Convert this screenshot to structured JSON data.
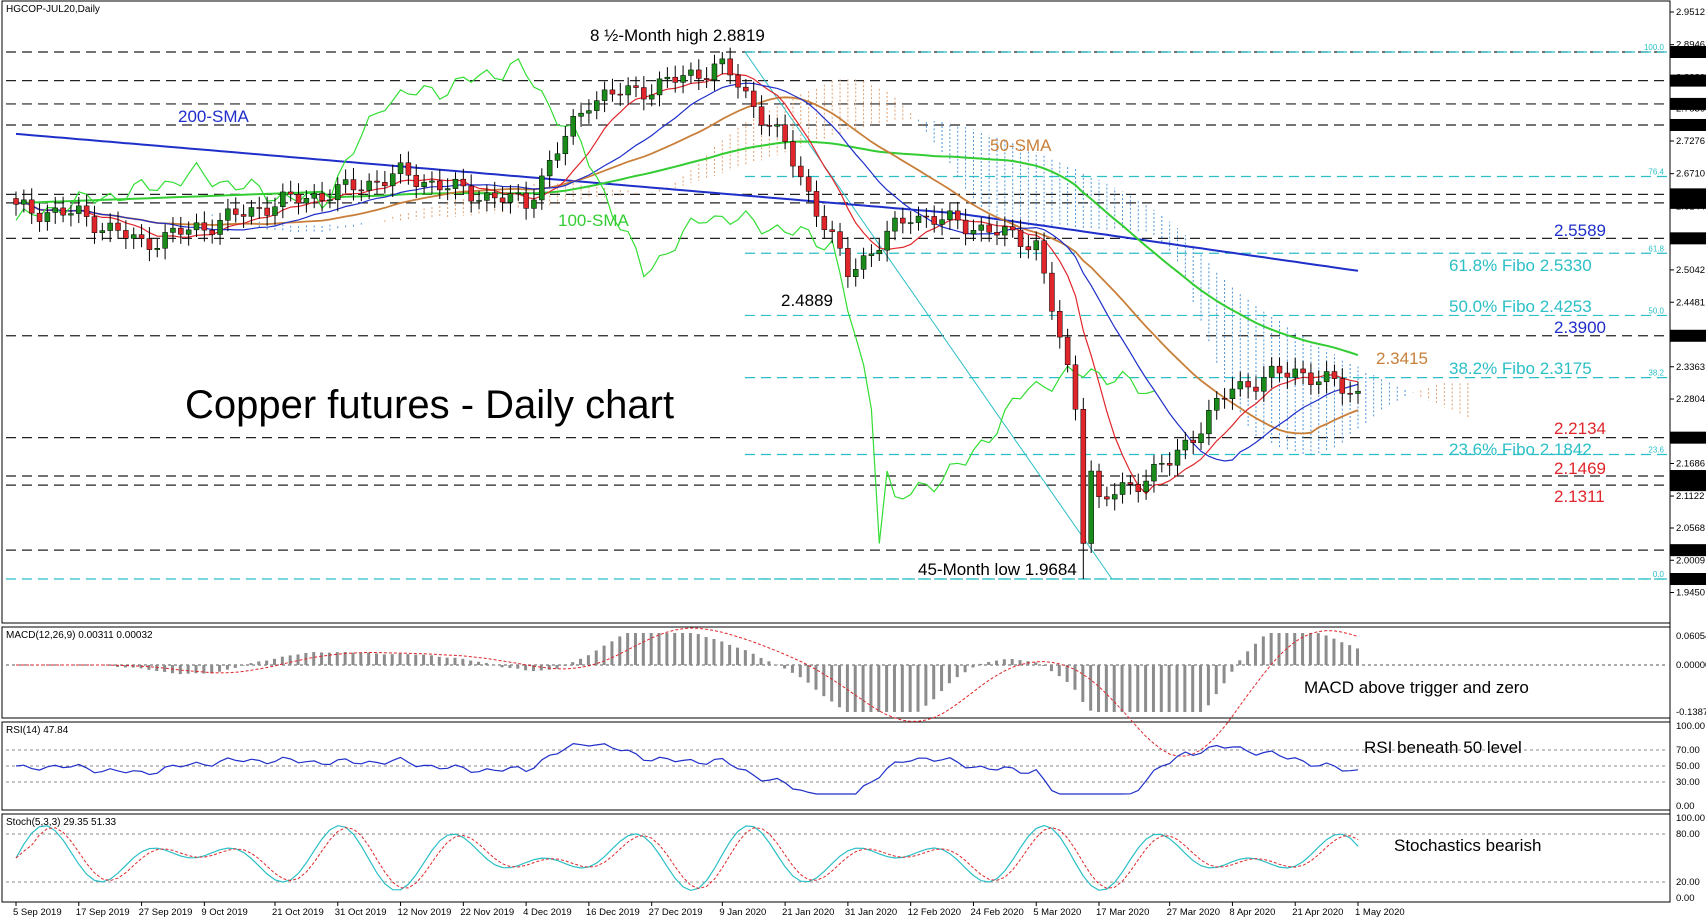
{
  "symbol": "HGCOP-JUL20,Daily",
  "chart_title": "Copper futures - Daily chart",
  "colors": {
    "bull_candle": "#1a8a1a",
    "bear_candle": "#e0262b",
    "sma200": "#1f2fc9",
    "sma100": "#33cc33",
    "sma50": "#c87f3a",
    "fibo": "#2bbfc6",
    "tenkan": "#e0262b",
    "kijun": "#1f2fc9",
    "chikou": "#33dd33",
    "cloud_bull": "#e0a070",
    "cloud_bear": "#4f95d8",
    "macd_hist": "#8c8c8c",
    "macd_signal": "#e0262b",
    "rsi": "#1f2fc9",
    "stoch_main": "#2bbfc6",
    "stoch_signal": "#e0262b"
  },
  "price_axis_ticks": [
    "2.9512",
    "2.8946",
    "2.8380",
    "2.7836",
    "2.7276",
    "2.6710",
    "2.6144",
    "2.5578",
    "2.5042",
    "2.4481",
    "2.3363",
    "2.2804",
    "2.1686",
    "2.1122",
    "2.0568",
    "2.0009",
    "1.9450"
  ],
  "price_levels": [
    {
      "value": "2.8819",
      "style": "dash-dark",
      "box": "dark"
    },
    {
      "value": "2.8323",
      "style": "dash-dark",
      "box": "dark"
    },
    {
      "value": "2.7919",
      "style": "dash-dark",
      "box": "dark"
    },
    {
      "value": "2.7554",
      "style": "dash-dark",
      "box": "dark"
    },
    {
      "value": "2.6351",
      "style": "dash-dark",
      "box": "dark"
    },
    {
      "value": "2.6204",
      "style": "dash-dark",
      "box": "dark"
    },
    {
      "value": "2.5589",
      "style": "dash-dark",
      "box": "dark"
    },
    {
      "value": "2.3900",
      "style": "dash-dark",
      "box": "dark"
    },
    {
      "value": "2.2134",
      "style": "dash-dark",
      "box": "dark"
    },
    {
      "value": "2.1469",
      "style": "dash-dark",
      "box": "dark"
    },
    {
      "value": "2.1311",
      "style": "dash-dark",
      "box": "dark"
    },
    {
      "value": "2.0184",
      "style": "dash-dark",
      "box": "dark"
    },
    {
      "value": "1.9684",
      "style": "dash-fib",
      "box": "dark"
    }
  ],
  "fib_levels": [
    {
      "label": "100.0",
      "value": 2.8819
    },
    {
      "label": "76.4",
      "value": 2.6661
    },
    {
      "label": "61.8",
      "value": 2.533
    },
    {
      "label": "50.0",
      "value": 2.4253
    },
    {
      "label": "38.2",
      "value": 2.3175
    },
    {
      "label": "23.6",
      "value": 2.1842
    },
    {
      "label": "0.0",
      "value": 1.9684
    }
  ],
  "annotations": {
    "high": "8 ½-Month high 2.8819",
    "low": "45-Month low 1.9684",
    "swing": "2.4889",
    "sma200": "200-SMA",
    "sma100": "100-SMA",
    "sma50": "50-SMA",
    "r1": "2.5589",
    "fib618": "61.8% Fibo 2.5330",
    "fib50": "50.0% Fibo 2.4253",
    "r2": "2.3900",
    "sma50_val": "2.3415",
    "fib382": "38.2% Fibo 2.3175",
    "s1": "2.2134",
    "fib236": "23.6% Fibo 2.1842",
    "s2": "2.1469",
    "s3": "2.1311"
  },
  "macd": {
    "label": "MACD(12,26,9) 0.00311 0.00032",
    "ticks": [
      "0.06054",
      "0.00000",
      "-0.13875"
    ],
    "note": "MACD above trigger and zero"
  },
  "rsi": {
    "label": "RSI(14) 47.84",
    "ticks": [
      "100.00",
      "70.00",
      "50.00",
      "30.00",
      "0.00"
    ],
    "note": "RSI beneath 50 level"
  },
  "stoch": {
    "label": "Stoch(5,3,3) 29.35 51.33",
    "ticks": [
      "100.00",
      "80.00",
      "20.00",
      "0.00"
    ],
    "note": "Stochastics bearish"
  },
  "date_ticks": [
    "5 Sep 2019",
    "17 Sep 2019",
    "27 Sep 2019",
    "9 Oct 2019",
    "21 Oct 2019",
    "31 Oct 2019",
    "12 Nov 2019",
    "22 Nov 2019",
    "4 Dec 2019",
    "16 Dec 2019",
    "27 Dec 2019",
    "9 Jan 2020",
    "21 Jan 2020",
    "31 Jan 2020",
    "12 Feb 2020",
    "24 Feb 2020",
    "5 Mar 2020",
    "17 Mar 2020",
    "27 Mar 2020",
    "8 Apr 2020",
    "21 Apr 2020",
    "1 May 2020"
  ],
  "chart_data": {
    "type": "candlestick",
    "title": "Copper futures - Daily chart",
    "x_range": [
      "5 Sep 2019",
      "1 May 2020"
    ],
    "ylim": [
      1.945,
      2.9512
    ],
    "close_path": [
      {
        "date": "5 Sep 2019",
        "close": 2.61
      },
      {
        "date": "17 Sep 2019",
        "close": 2.6
      },
      {
        "date": "27 Sep 2019",
        "close": 2.55
      },
      {
        "date": "9 Oct 2019",
        "close": 2.58
      },
      {
        "date": "21 Oct 2019",
        "close": 2.62
      },
      {
        "date": "31 Oct 2019",
        "close": 2.64
      },
      {
        "date": "12 Nov 2019",
        "close": 2.67
      },
      {
        "date": "22 Nov 2019",
        "close": 2.64
      },
      {
        "date": "4 Dec 2019",
        "close": 2.62
      },
      {
        "date": "16 Dec 2019",
        "close": 2.8
      },
      {
        "date": "27 Dec 2019",
        "close": 2.82
      },
      {
        "date": "9 Jan 2020",
        "close": 2.86
      },
      {
        "date": "21 Jan 2020",
        "close": 2.72
      },
      {
        "date": "31 Jan 2020",
        "close": 2.5
      },
      {
        "date": "12 Feb 2020",
        "close": 2.6
      },
      {
        "date": "24 Feb 2020",
        "close": 2.58
      },
      {
        "date": "5 Mar 2020",
        "close": 2.55
      },
      {
        "date": "17 Mar 2020",
        "close": 2.1
      },
      {
        "date": "27 Mar 2020",
        "close": 2.17
      },
      {
        "date": "8 Apr 2020",
        "close": 2.3
      },
      {
        "date": "21 Apr 2020",
        "close": 2.33
      },
      {
        "date": "1 May 2020",
        "close": 2.29
      }
    ]
  }
}
